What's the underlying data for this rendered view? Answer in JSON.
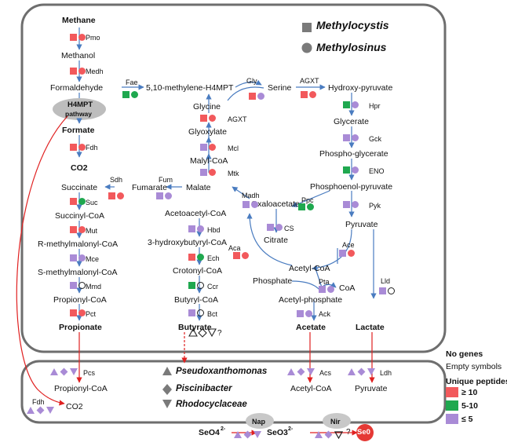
{
  "legend": {
    "methylocystis": "Methylocystis",
    "methylosinus": "Methylosinus",
    "no_genes": "No genes",
    "empty_symbols": "Empty symbols",
    "unique_peptides": "Unique peptides",
    "ge10": "≥ 10",
    "r5_10": "5-10",
    "le5": "≤ 5",
    "pseudoxanthomonas": "Pseudoxanthomonas",
    "piscinibacter": "Piscinibacter",
    "rhodocyclaceae": "Rhodocyclaceae"
  },
  "colors": {
    "red": "#f2595c",
    "green": "#1fa84f",
    "purple": "#a98bd6",
    "gray": "#7a7a7a",
    "arrow_blue": "#4a7cc0",
    "arrow_red": "#e02020"
  },
  "metabolites": {
    "methane": "Methane",
    "methanol": "Methanol",
    "formaldehyde": "Formaldehyde",
    "h4mpt_pathway_1": "H4MPT",
    "h4mpt_pathway_2": "pathway",
    "formate": "Formate",
    "co2": "CO2",
    "methylene_h4mpt": "5,10-methylene-H4MPT",
    "serine": "Serine",
    "hydroxy_pyruvate": "Hydroxy-pyruvate",
    "glycine": "Glycine",
    "glyoxylate": "Glyoxylate",
    "malyl_coa": "Malyl-CoA",
    "malate": "Malate",
    "fumarate": "Fumarate",
    "succinate": "Succinate",
    "succinyl_coa": "Succinyl-CoA",
    "r_methylmalonyl_coa": "R-methylmalonyl-CoA",
    "s_methylmalonyl_coa": "S-methylmalonyl-CoA",
    "propionyl_coa": "Propionyl-CoA",
    "propionate": "Propionate",
    "glycerate": "Glycerate",
    "phospho_glycerate": "Phospho-glycerate",
    "phosphoenol_pyruvate": "Phosphoenol-pyruvate",
    "pyruvate": "Pyruvate",
    "oxaloacetate": "Oxaloacetate",
    "citrate": "Citrate",
    "acetoacetyl_coa": "Acetoacetyl-CoA",
    "hydroxybutyryl_coa": "3-hydroxybutyryl-CoA",
    "crotonyl_coa": "Crotonyl-CoA",
    "butyryl_coa": "Butyryl-CoA",
    "butyrate": "Butyrate",
    "acetyl_coa": "Acetyl-CoA",
    "phosphate": "Phosphate",
    "coa": "CoA",
    "acetyl_phosphate": "Acetyl-phosphate",
    "acetate": "Acetate",
    "lactate": "Lactate",
    "bottom_propionyl_coa": "Propionyl-CoA",
    "bottom_co2": "CO2",
    "bottom_acetyl_coa": "Acetyl-CoA",
    "bottom_pyruvate": "Pyruvate",
    "seo4": "SeO4",
    "seo4_charge": "2-",
    "seo3": "SeO3",
    "seo3_charge": "2-",
    "se0": "Se0",
    "unknown": "?"
  },
  "enzymes": {
    "pmo": "Pmo",
    "medh": "Medh",
    "fae": "Fae",
    "fdh": "Fdh",
    "gly": "Gly",
    "agxt_top": "AGXT",
    "hpr": "Hpr",
    "gck": "Gck",
    "eno": "ENO",
    "pyk": "Pyk",
    "ppc": "Ppc",
    "agxt_left": "AGXT",
    "mcl": "Mcl",
    "mtk": "Mtk",
    "fum": "Fum",
    "sdh": "Sdh",
    "suc": "Suc",
    "mut": "Mut",
    "mce": "Mce",
    "mmd": "Mmd",
    "pct": "Pct",
    "madh": "Madh",
    "cs": "CS",
    "aca": "Aca",
    "hbd": "Hbd",
    "ech": "Ech",
    "ccr": "Ccr",
    "bct": "Bct",
    "ace": "Ace",
    "pta": "Pta",
    "ack": "Ack",
    "lld": "Lld",
    "pcs": "Pcs",
    "fdh_bottom": "Fdh",
    "acs": "Acs",
    "ldh": "Ldh",
    "nap": "Nap",
    "nir": "Nir"
  }
}
